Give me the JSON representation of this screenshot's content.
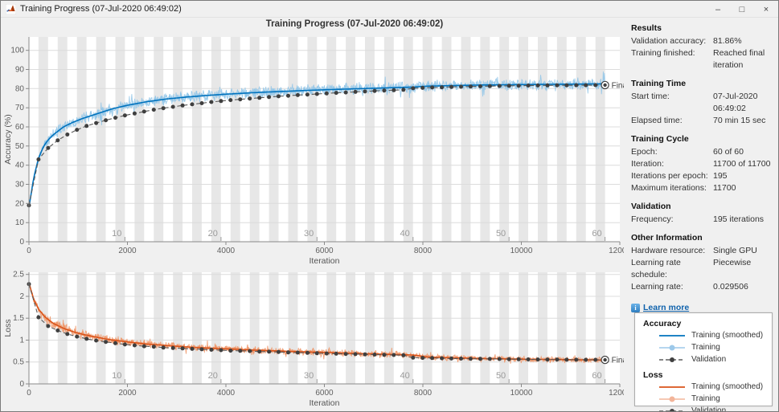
{
  "window": {
    "title": "Training Progress (07-Jul-2020 06:49:02)",
    "controls": {
      "minimize": "–",
      "maximize": "□",
      "close": "×"
    }
  },
  "chart_title": "Training Progress (07-Jul-2020 06:49:02)",
  "colors": {
    "acc_smoothed": "#0072BD",
    "acc_raw": "#8ec4e8",
    "loss_smoothed": "#D95319",
    "loss_raw": "#ee9466",
    "validation_line": "#5a5a5a",
    "validation_marker": "#3f3f3f",
    "band": "#e7e7e7",
    "grid": "#dcdcdc",
    "axis": "#8a8a8a",
    "tick_text": "#5f5f5f",
    "epoch_text": "#9b9b9b"
  },
  "chart_data": [
    {
      "type": "line",
      "title": "Accuracy",
      "xlabel": "Iteration",
      "ylabel": "Accuracy (%)",
      "xlim": [
        0,
        12000
      ],
      "ylim": [
        0,
        107
      ],
      "x_ticks": [
        0,
        2000,
        4000,
        6000,
        8000,
        10000,
        12000
      ],
      "y_ticks": [
        0,
        10,
        20,
        30,
        40,
        50,
        60,
        70,
        80,
        90,
        100
      ],
      "epoch_ticks": [
        10,
        20,
        30,
        40,
        50,
        60
      ],
      "iterations_per_epoch": 195,
      "max_iteration": 11700,
      "final_label": "Final",
      "series": [
        {
          "name": "Training",
          "style": "raw",
          "noise_amp": 3.4,
          "noise_mode": "flat",
          "seed": 11,
          "keypoints": [
            [
              0,
              18
            ],
            [
              50,
              26
            ],
            [
              100,
              34
            ],
            [
              200,
              44
            ],
            [
              300,
              50
            ],
            [
              400,
              53.5
            ],
            [
              500,
              56
            ],
            [
              700,
              60
            ],
            [
              900,
              62.5
            ],
            [
              1100,
              64.5
            ],
            [
              1400,
              67
            ],
            [
              1700,
              69.5
            ],
            [
              2000,
              71.3
            ],
            [
              2400,
              73.2
            ],
            [
              2800,
              74.6
            ],
            [
              3200,
              75.6
            ],
            [
              3600,
              76.4
            ],
            [
              4000,
              77.1
            ],
            [
              4500,
              77.8
            ],
            [
              5000,
              78.4
            ],
            [
              5500,
              78.9
            ],
            [
              6000,
              79.4
            ],
            [
              6500,
              79.8
            ],
            [
              7000,
              80.2
            ],
            [
              7400,
              80.5
            ],
            [
              7800,
              80.8
            ],
            [
              8100,
              81.3
            ],
            [
              8600,
              81.6
            ],
            [
              9200,
              81.9
            ],
            [
              10000,
              82.1
            ],
            [
              10800,
              82.3
            ],
            [
              11700,
              82.5
            ]
          ]
        },
        {
          "name": "Training (smoothed)",
          "style": "solid",
          "keypoints": [
            [
              0,
              18
            ],
            [
              50,
              26
            ],
            [
              100,
              34
            ],
            [
              200,
              44
            ],
            [
              300,
              50
            ],
            [
              400,
              53.5
            ],
            [
              500,
              56
            ],
            [
              700,
              60
            ],
            [
              900,
              62.5
            ],
            [
              1100,
              64.5
            ],
            [
              1400,
              67
            ],
            [
              1700,
              69.5
            ],
            [
              2000,
              71.3
            ],
            [
              2400,
              73.2
            ],
            [
              2800,
              74.6
            ],
            [
              3200,
              75.6
            ],
            [
              3600,
              76.4
            ],
            [
              4000,
              77.1
            ],
            [
              4500,
              77.8
            ],
            [
              5000,
              78.4
            ],
            [
              5500,
              78.9
            ],
            [
              6000,
              79.4
            ],
            [
              6500,
              79.8
            ],
            [
              7000,
              80.2
            ],
            [
              7400,
              80.5
            ],
            [
              7800,
              80.8
            ],
            [
              8100,
              81.3
            ],
            [
              8600,
              81.6
            ],
            [
              9200,
              81.9
            ],
            [
              10000,
              82.1
            ],
            [
              10800,
              82.3
            ],
            [
              11700,
              82.5
            ]
          ]
        },
        {
          "name": "Validation",
          "style": "dashed-marker",
          "x_step": 195,
          "values": [
            19,
            43,
            49,
            53,
            56,
            58.5,
            60.5,
            62,
            63.5,
            64.8,
            66,
            67,
            68,
            69,
            69.8,
            70.5,
            71.2,
            71.8,
            72.4,
            73,
            73.5,
            74,
            74.4,
            74.8,
            75.2,
            75.6,
            76,
            76.3,
            76.6,
            76.9,
            77.2,
            77.5,
            77.8,
            78,
            78.3,
            78.5,
            78.8,
            79,
            79.2,
            79.4,
            80.2,
            80.4,
            80.6,
            80.7,
            80.9,
            81,
            81.1,
            81.2,
            81.3,
            81.4,
            81.5,
            81.55,
            81.6,
            81.65,
            81.7,
            81.72,
            81.75,
            81.78,
            81.8,
            81.83,
            81.86
          ]
        }
      ]
    },
    {
      "type": "line",
      "title": "Loss",
      "xlabel": "Iteration",
      "ylabel": "Loss",
      "xlim": [
        0,
        12000
      ],
      "ylim": [
        0,
        2.55
      ],
      "x_ticks": [
        0,
        2000,
        4000,
        6000,
        8000,
        10000,
        12000
      ],
      "y_ticks": [
        0,
        0.5,
        1,
        1.5,
        2,
        2.5
      ],
      "epoch_ticks": [
        10,
        20,
        30,
        40,
        50,
        60
      ],
      "iterations_per_epoch": 195,
      "max_iteration": 11700,
      "final_label": "Final",
      "series": [
        {
          "name": "Training",
          "style": "raw",
          "noise_amp": 0.045,
          "noise_mode": "value",
          "seed": 29,
          "keypoints": [
            [
              0,
              2.32
            ],
            [
              50,
              2.1
            ],
            [
              100,
              1.92
            ],
            [
              200,
              1.7
            ],
            [
              300,
              1.56
            ],
            [
              400,
              1.46
            ],
            [
              500,
              1.38
            ],
            [
              700,
              1.27
            ],
            [
              900,
              1.19
            ],
            [
              1100,
              1.13
            ],
            [
              1400,
              1.06
            ],
            [
              1700,
              1.0
            ],
            [
              2000,
              0.96
            ],
            [
              2400,
              0.91
            ],
            [
              2800,
              0.875
            ],
            [
              3200,
              0.845
            ],
            [
              3600,
              0.82
            ],
            [
              4000,
              0.8
            ],
            [
              4500,
              0.775
            ],
            [
              5000,
              0.755
            ],
            [
              5500,
              0.735
            ],
            [
              6000,
              0.72
            ],
            [
              6500,
              0.7
            ],
            [
              7000,
              0.685
            ],
            [
              7400,
              0.672
            ],
            [
              7800,
              0.66
            ],
            [
              8100,
              0.615
            ],
            [
              8600,
              0.595
            ],
            [
              9200,
              0.58
            ],
            [
              10000,
              0.565
            ],
            [
              10800,
              0.555
            ],
            [
              11700,
              0.545
            ]
          ]
        },
        {
          "name": "Training (smoothed)",
          "style": "solid",
          "keypoints": [
            [
              0,
              2.32
            ],
            [
              50,
              2.1
            ],
            [
              100,
              1.92
            ],
            [
              200,
              1.7
            ],
            [
              300,
              1.56
            ],
            [
              400,
              1.46
            ],
            [
              500,
              1.38
            ],
            [
              700,
              1.27
            ],
            [
              900,
              1.19
            ],
            [
              1100,
              1.13
            ],
            [
              1400,
              1.06
            ],
            [
              1700,
              1.0
            ],
            [
              2000,
              0.96
            ],
            [
              2400,
              0.91
            ],
            [
              2800,
              0.875
            ],
            [
              3200,
              0.845
            ],
            [
              3600,
              0.82
            ],
            [
              4000,
              0.8
            ],
            [
              4500,
              0.775
            ],
            [
              5000,
              0.755
            ],
            [
              5500,
              0.735
            ],
            [
              6000,
              0.72
            ],
            [
              6500,
              0.7
            ],
            [
              7000,
              0.685
            ],
            [
              7400,
              0.672
            ],
            [
              7800,
              0.66
            ],
            [
              8100,
              0.615
            ],
            [
              8600,
              0.595
            ],
            [
              9200,
              0.58
            ],
            [
              10000,
              0.565
            ],
            [
              10800,
              0.555
            ],
            [
              11700,
              0.545
            ]
          ]
        },
        {
          "name": "Validation",
          "style": "dashed-marker",
          "x_step": 195,
          "values": [
            2.28,
            1.52,
            1.32,
            1.22,
            1.14,
            1.08,
            1.03,
            0.99,
            0.96,
            0.93,
            0.9,
            0.88,
            0.86,
            0.85,
            0.83,
            0.82,
            0.81,
            0.8,
            0.79,
            0.78,
            0.77,
            0.76,
            0.755,
            0.75,
            0.74,
            0.735,
            0.73,
            0.72,
            0.715,
            0.71,
            0.7,
            0.695,
            0.69,
            0.685,
            0.68,
            0.675,
            0.67,
            0.665,
            0.66,
            0.655,
            0.6,
            0.595,
            0.59,
            0.585,
            0.58,
            0.578,
            0.575,
            0.573,
            0.57,
            0.568,
            0.565,
            0.563,
            0.56,
            0.558,
            0.556,
            0.555,
            0.553,
            0.552,
            0.551,
            0.55,
            0.548
          ]
        }
      ]
    }
  ],
  "panel": {
    "sections": [
      {
        "header": "Results",
        "rows": [
          {
            "label": "Validation accuracy:",
            "value": "81.86%"
          },
          {
            "label": "Training finished:",
            "value": "Reached final iteration"
          }
        ]
      },
      {
        "header": "Training Time",
        "rows": [
          {
            "label": "Start time:",
            "value": "07-Jul-2020 06:49:02"
          },
          {
            "label": "Elapsed time:",
            "value": "70 min 15 sec"
          }
        ]
      },
      {
        "header": "Training Cycle",
        "rows": [
          {
            "label": "Epoch:",
            "value": "60 of 60"
          },
          {
            "label": "Iteration:",
            "value": "11700 of 11700"
          },
          {
            "label": "Iterations per epoch:",
            "value": "195"
          },
          {
            "label": "Maximum iterations:",
            "value": "11700"
          }
        ]
      },
      {
        "header": "Validation",
        "rows": [
          {
            "label": "Frequency:",
            "value": "195 iterations"
          }
        ]
      },
      {
        "header": "Other Information",
        "rows": [
          {
            "label": "Hardware resource:",
            "value": "Single GPU"
          },
          {
            "label": "Learning rate schedule:",
            "value": "Piecewise"
          },
          {
            "label": "Learning rate:",
            "value": "0.029506"
          }
        ]
      }
    ],
    "learn_more": "Learn more",
    "info_icon_glyph": "i"
  },
  "legend": {
    "groups": [
      {
        "title": "Accuracy",
        "entries": [
          {
            "label": "Training (smoothed)",
            "style": "solid",
            "color": "#0072BD"
          },
          {
            "label": "Training",
            "style": "raw-marker",
            "color": "#9dc9ea"
          },
          {
            "label": "Validation",
            "style": "dashed-marker",
            "color": "#3f3f3f"
          }
        ]
      },
      {
        "title": "Loss",
        "entries": [
          {
            "label": "Training (smoothed)",
            "style": "solid",
            "color": "#D95319"
          },
          {
            "label": "Training",
            "style": "raw-marker",
            "color": "#f3b59a"
          },
          {
            "label": "Validation",
            "style": "dashed-marker",
            "color": "#3f3f3f"
          }
        ]
      }
    ]
  }
}
